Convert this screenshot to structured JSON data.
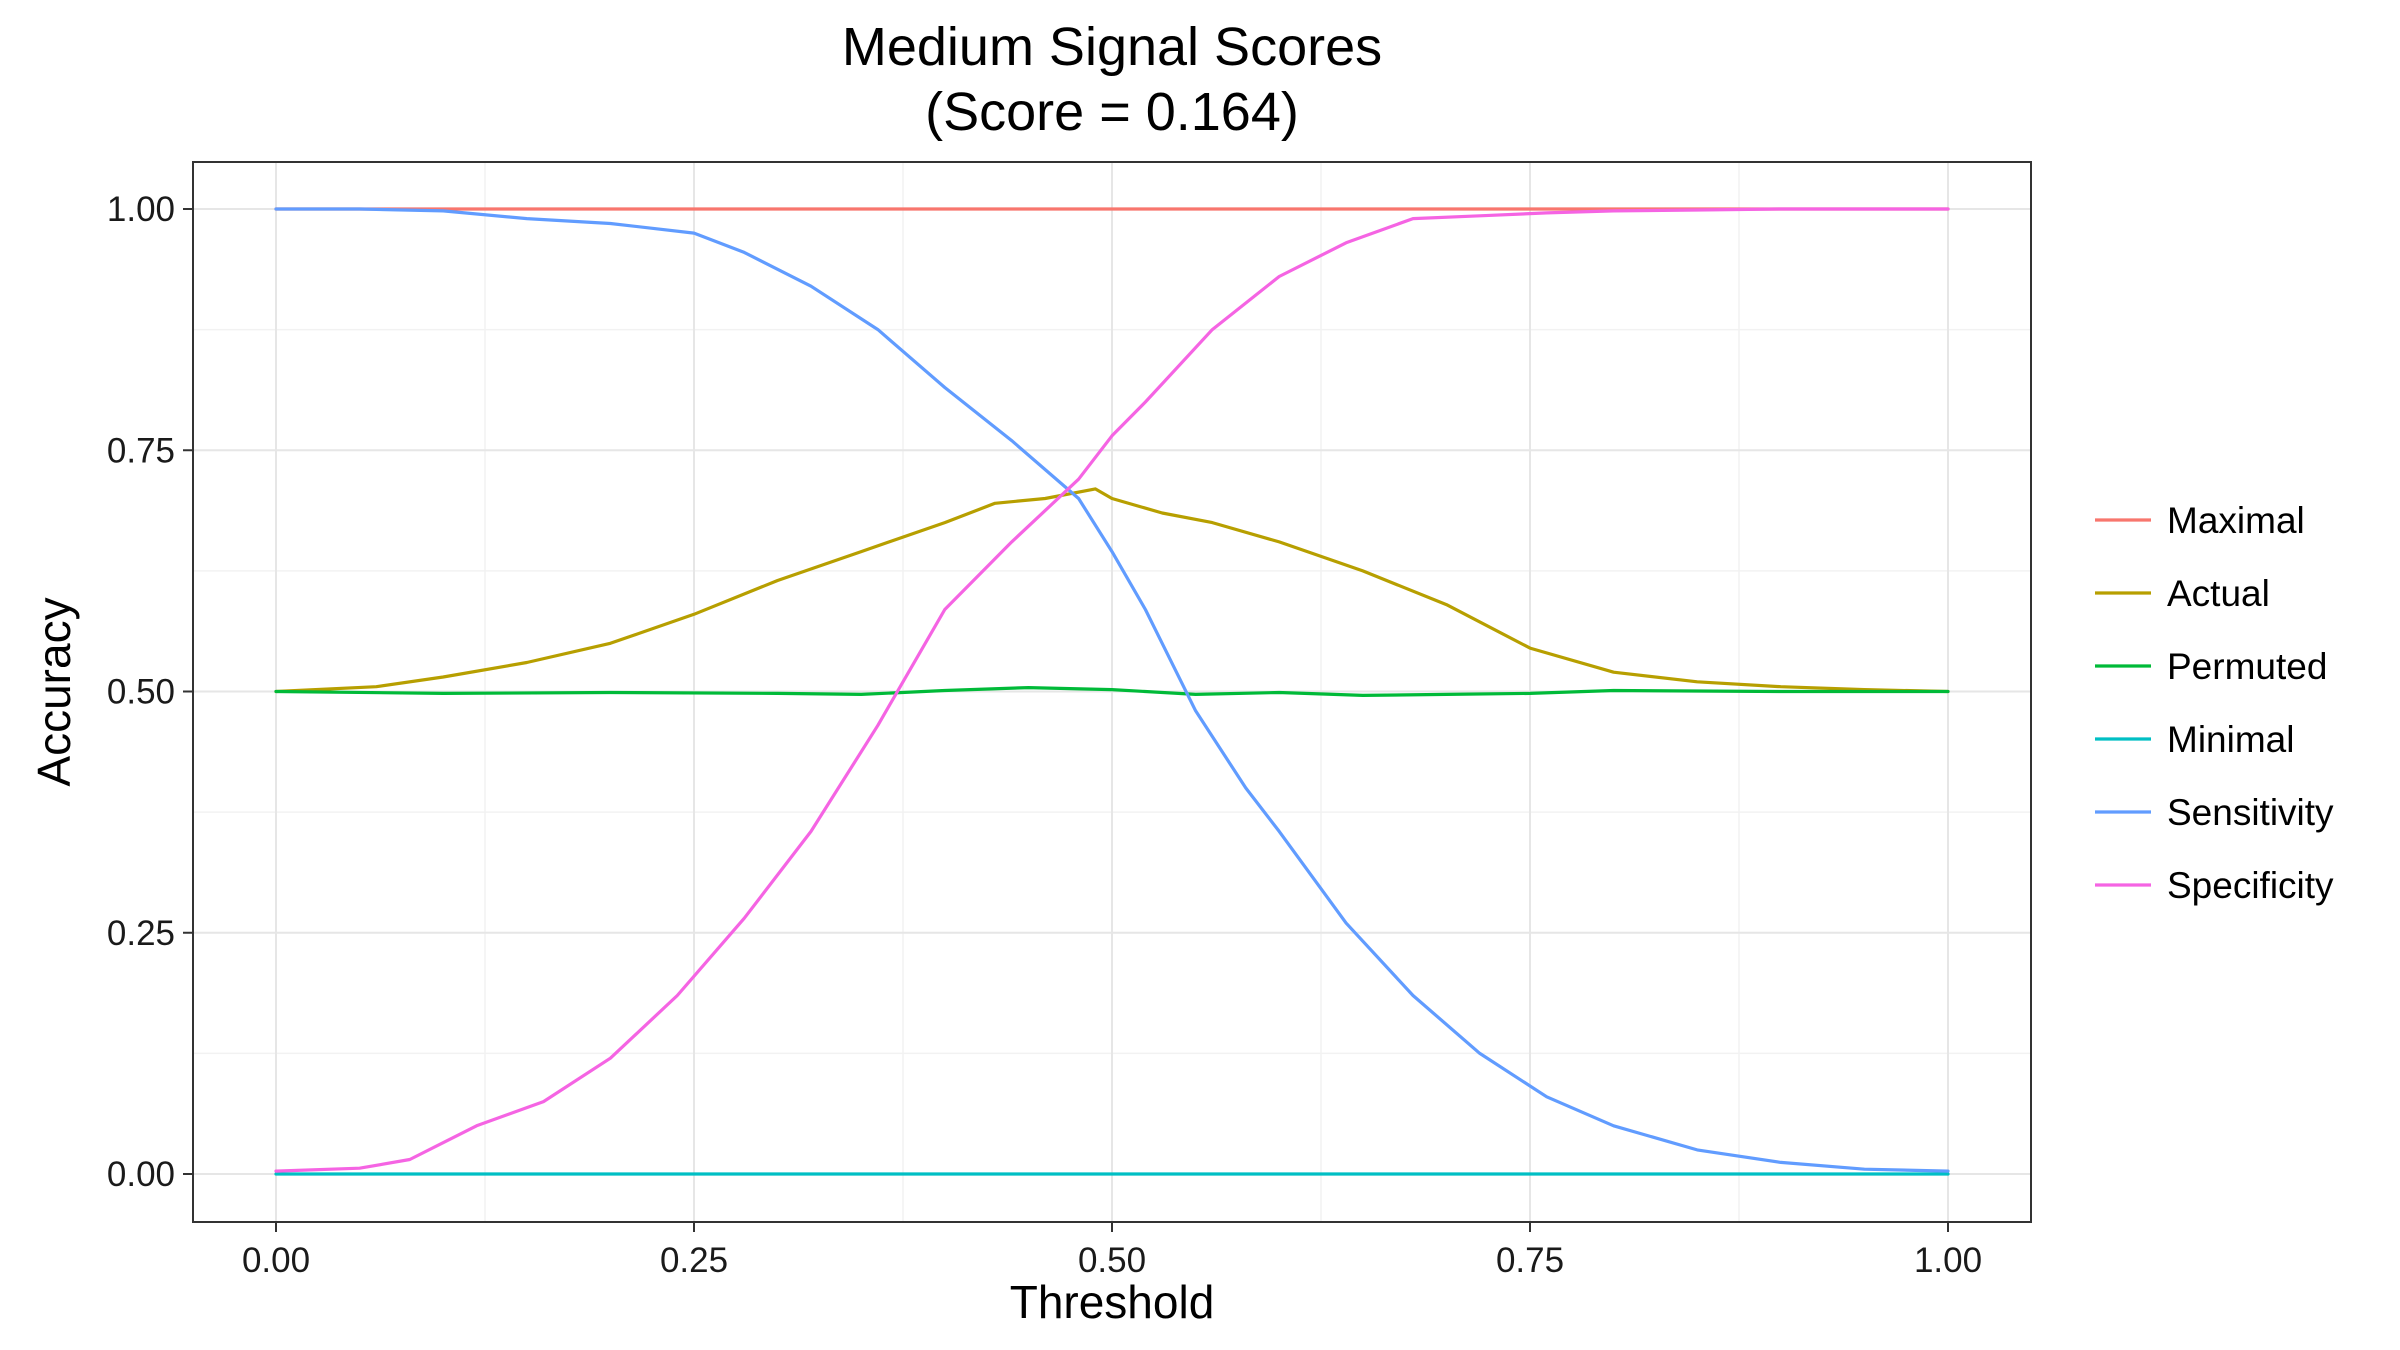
{
  "chart_data": {
    "type": "line",
    "title_lines": [
      "Medium Signal Scores",
      "(Score = 0.164)"
    ],
    "xlabel": "Threshold",
    "ylabel": "Accuracy",
    "xlim": [
      0,
      1
    ],
    "ylim": [
      0,
      1
    ],
    "x_ticks": [
      "0.00",
      "0.25",
      "0.50",
      "0.75",
      "1.00"
    ],
    "y_ticks": [
      "0.00",
      "0.25",
      "0.50",
      "0.75",
      "1.00"
    ],
    "x_tick_values": [
      0,
      0.25,
      0.5,
      0.75,
      1
    ],
    "y_tick_values": [
      0,
      0.25,
      0.5,
      0.75,
      1
    ],
    "grid": true,
    "legend_position": "right",
    "series": [
      {
        "name": "Maximal",
        "color": "#F8766D",
        "x": [
          0,
          1
        ],
        "y": [
          1,
          1
        ]
      },
      {
        "name": "Actual",
        "color": "#B79F00",
        "x": [
          0,
          0.06,
          0.1,
          0.15,
          0.2,
          0.25,
          0.3,
          0.35,
          0.4,
          0.43,
          0.46,
          0.49,
          0.5,
          0.53,
          0.56,
          0.6,
          0.65,
          0.7,
          0.75,
          0.8,
          0.85,
          0.9,
          0.95,
          1
        ],
        "y": [
          0.5,
          0.505,
          0.515,
          0.53,
          0.55,
          0.58,
          0.615,
          0.645,
          0.675,
          0.695,
          0.7,
          0.71,
          0.7,
          0.685,
          0.675,
          0.655,
          0.625,
          0.59,
          0.545,
          0.52,
          0.51,
          0.505,
          0.502,
          0.5
        ]
      },
      {
        "name": "Permuted",
        "color": "#00BA38",
        "x": [
          0,
          0.1,
          0.2,
          0.3,
          0.35,
          0.4,
          0.45,
          0.5,
          0.55,
          0.6,
          0.65,
          0.7,
          0.75,
          0.8,
          0.9,
          1
        ],
        "y": [
          0.5,
          0.498,
          0.499,
          0.498,
          0.497,
          0.501,
          0.504,
          0.502,
          0.497,
          0.499,
          0.496,
          0.497,
          0.498,
          0.501,
          0.5,
          0.5
        ]
      },
      {
        "name": "Minimal",
        "color": "#00BFC4",
        "x": [
          0,
          1
        ],
        "y": [
          0,
          0
        ]
      },
      {
        "name": "Sensitivity",
        "color": "#619CFF",
        "x": [
          0,
          0.05,
          0.1,
          0.15,
          0.2,
          0.25,
          0.28,
          0.32,
          0.36,
          0.4,
          0.44,
          0.48,
          0.5,
          0.52,
          0.55,
          0.58,
          0.6,
          0.64,
          0.68,
          0.72,
          0.76,
          0.8,
          0.85,
          0.9,
          0.95,
          1
        ],
        "y": [
          1,
          1,
          0.998,
          0.99,
          0.985,
          0.975,
          0.955,
          0.92,
          0.875,
          0.815,
          0.76,
          0.7,
          0.645,
          0.585,
          0.48,
          0.4,
          0.355,
          0.26,
          0.185,
          0.125,
          0.08,
          0.05,
          0.025,
          0.012,
          0.005,
          0.003
        ]
      },
      {
        "name": "Specificity",
        "color": "#F564E3",
        "x": [
          0,
          0.05,
          0.08,
          0.12,
          0.16,
          0.2,
          0.24,
          0.28,
          0.32,
          0.36,
          0.4,
          0.44,
          0.48,
          0.5,
          0.52,
          0.56,
          0.6,
          0.64,
          0.68,
          0.72,
          0.76,
          0.8,
          0.85,
          0.9,
          0.95,
          1
        ],
        "y": [
          0.003,
          0.006,
          0.015,
          0.05,
          0.075,
          0.12,
          0.185,
          0.265,
          0.355,
          0.465,
          0.585,
          0.655,
          0.72,
          0.765,
          0.8,
          0.875,
          0.93,
          0.965,
          0.99,
          0.993,
          0.996,
          0.998,
          0.999,
          1,
          1,
          1
        ]
      }
    ]
  }
}
